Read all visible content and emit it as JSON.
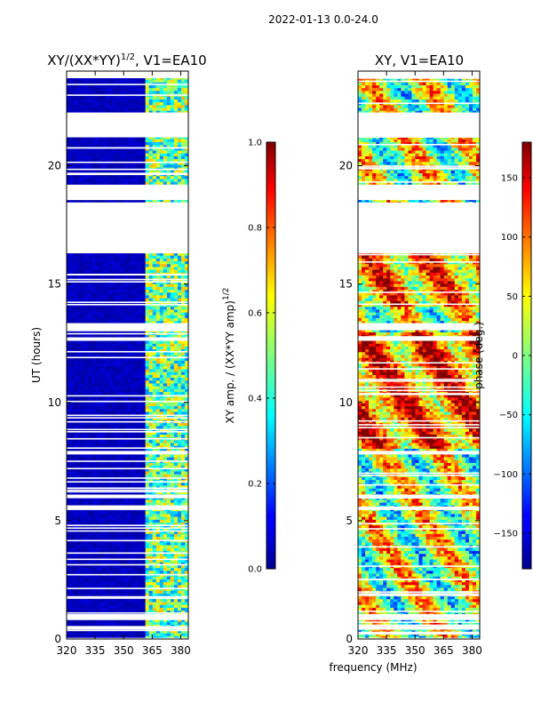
{
  "suptitle": "2022-01-13 0.0-24.0",
  "xlabel": "frequency (MHz)",
  "colors": {
    "frame": "#000000",
    "background": "#ffffff",
    "low": "#00008f",
    "mid": "#7fff7f",
    "high": "#800000"
  },
  "chart_data": [
    {
      "type": "heatmap",
      "title": "XY/(XX*YY)",
      "title_sup": "1/2",
      "title_suffix": ", V1=EA10",
      "xlabel": "frequency (MHz)",
      "ylabel": "UT (hours)",
      "xlim": [
        320,
        384
      ],
      "ylim": [
        0,
        24
      ],
      "x_ticks": [
        320,
        335,
        350,
        365,
        380
      ],
      "y_ticks": [
        0,
        5,
        10,
        15,
        20
      ],
      "colormap": "jet",
      "color_range": [
        0.0,
        1.0
      ],
      "colorbar_label": "XY amp. / (XX*YY amp)",
      "colorbar_label_sup": "1/2",
      "colorbar_ticks": [
        "0.0",
        "0.2",
        "0.4",
        "0.6",
        "0.8",
        "1.0"
      ],
      "colorbar_tick_values": [
        0.0,
        0.2,
        0.4,
        0.6,
        0.8,
        1.0
      ],
      "data_gaps_hours": [
        [
          0.0,
          0.05
        ],
        [
          0.4,
          0.55
        ],
        [
          0.8,
          1.05
        ],
        [
          5.45,
          5.6
        ],
        [
          5.95,
          6.1
        ],
        [
          7.8,
          7.95
        ],
        [
          12.6,
          12.75
        ],
        [
          13.05,
          13.35
        ],
        [
          16.3,
          18.45
        ],
        [
          18.55,
          19.2
        ],
        [
          21.2,
          22.25
        ],
        [
          23.7,
          24.0
        ]
      ],
      "description_values": {
        "low_band_amp": 0.05,
        "high_band_amp_range": [
          0.3,
          0.7
        ],
        "high_band_start_mhz": 362
      }
    },
    {
      "type": "heatmap",
      "title": "XY, V1=EA10",
      "xlabel": "frequency (MHz)",
      "ylabel": "",
      "xlim": [
        320,
        384
      ],
      "ylim": [
        0,
        24
      ],
      "x_ticks": [
        320,
        335,
        350,
        365,
        380
      ],
      "y_ticks": [
        0,
        5,
        10,
        15,
        20
      ],
      "colormap": "jet",
      "color_range": [
        -180,
        180
      ],
      "colorbar_label": "phase (deg.)",
      "colorbar_ticks": [
        "150",
        "100",
        "50",
        "0",
        "−50",
        "−100",
        "−150"
      ],
      "colorbar_tick_values": [
        150,
        100,
        50,
        0,
        -50,
        -100,
        -150
      ],
      "data_gaps_hours": [
        [
          0.0,
          0.05
        ],
        [
          0.4,
          0.55
        ],
        [
          0.8,
          1.05
        ],
        [
          5.45,
          5.6
        ],
        [
          5.95,
          6.1
        ],
        [
          7.8,
          7.95
        ],
        [
          12.6,
          12.75
        ],
        [
          13.05,
          13.35
        ],
        [
          16.3,
          18.45
        ],
        [
          18.55,
          19.2
        ],
        [
          21.2,
          22.25
        ],
        [
          23.7,
          24.0
        ]
      ]
    }
  ]
}
